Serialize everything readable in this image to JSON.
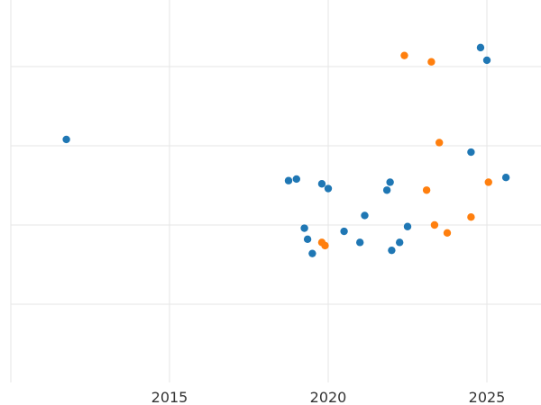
{
  "chart_data": {
    "type": "scatter",
    "title": "",
    "xlabel": "",
    "ylabel": "",
    "x_ticks": [
      2015,
      2020,
      2025
    ],
    "grid": true,
    "legend": "none",
    "series": [
      {
        "color": "#1f77b4",
        "points": [
          {
            "x": 2011.75,
            "y": 152
          },
          {
            "x": 2018.75,
            "y": 139
          },
          {
            "x": 2019.0,
            "y": 139.5
          },
          {
            "x": 2019.25,
            "y": 124
          },
          {
            "x": 2019.35,
            "y": 120.5
          },
          {
            "x": 2019.5,
            "y": 116
          },
          {
            "x": 2019.8,
            "y": 138
          },
          {
            "x": 2020.0,
            "y": 136.5
          },
          {
            "x": 2020.5,
            "y": 123
          },
          {
            "x": 2021.0,
            "y": 119.5
          },
          {
            "x": 2021.15,
            "y": 128
          },
          {
            "x": 2021.85,
            "y": 136
          },
          {
            "x": 2021.95,
            "y": 138.5
          },
          {
            "x": 2022.0,
            "y": 117
          },
          {
            "x": 2022.25,
            "y": 119.5
          },
          {
            "x": 2022.5,
            "y": 124.5
          },
          {
            "x": 2024.5,
            "y": 148
          },
          {
            "x": 2024.8,
            "y": 181
          },
          {
            "x": 2025.0,
            "y": 177
          },
          {
            "x": 2025.6,
            "y": 140
          }
        ]
      },
      {
        "color": "#ff7f0e",
        "points": [
          {
            "x": 2019.8,
            "y": 119.5
          },
          {
            "x": 2019.9,
            "y": 118.5
          },
          {
            "x": 2022.4,
            "y": 178.5
          },
          {
            "x": 2023.1,
            "y": 136
          },
          {
            "x": 2023.25,
            "y": 176.5
          },
          {
            "x": 2023.35,
            "y": 125
          },
          {
            "x": 2023.5,
            "y": 151
          },
          {
            "x": 2023.75,
            "y": 122.5
          },
          {
            "x": 2024.5,
            "y": 127.5
          },
          {
            "x": 2025.05,
            "y": 138.5
          }
        ]
      }
    ],
    "xlim": [
      2010,
      2026.5
    ],
    "ylim": [
      89,
      202
    ],
    "y_gridlines": [
      100,
      125,
      150,
      175,
      200
    ]
  }
}
